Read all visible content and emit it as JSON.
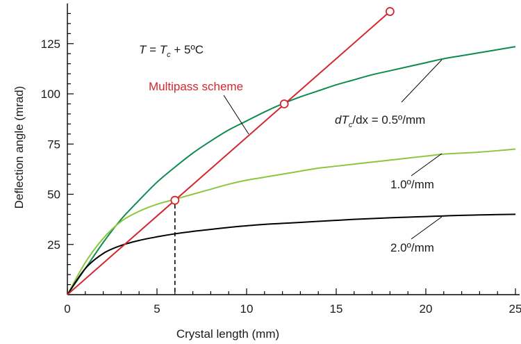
{
  "chart_data": {
    "type": "line",
    "xlabel": "Crystal length (mm)",
    "ylabel": "Deflection angle (mrad)",
    "xlim": [
      0,
      25
    ],
    "ylim": [
      0,
      145
    ],
    "x_ticks": [
      "0",
      "5",
      "10",
      "15",
      "20",
      "25"
    ],
    "y_ticks": [
      "25",
      "50",
      "75",
      "100",
      "125"
    ],
    "x_tick_values": [
      0,
      5,
      10,
      15,
      20,
      25
    ],
    "y_tick_values": [
      25,
      50,
      75,
      100,
      125
    ],
    "grid": false,
    "annotations": {
      "temperature": {
        "T": "T",
        "eq": " = ",
        "Tc": "T",
        "sub": "c",
        "rest": " + 5ºC"
      },
      "multipass": "Multipass scheme",
      "gradient": {
        "d": "dT",
        "sub": "c",
        "rest": "/dx = 0.5º/mm"
      },
      "mid": "1.0º/mm",
      "low": "2.0º/mm"
    },
    "series": [
      {
        "key": "gradient_0_5",
        "color": "#0e8a4e",
        "x": [
          0,
          1,
          2,
          3,
          4,
          5,
          6,
          7,
          8,
          9,
          10,
          11,
          12,
          13,
          14,
          15,
          16,
          17,
          18,
          19,
          20,
          21,
          22,
          23,
          24,
          25
        ],
        "y": [
          0,
          13,
          26,
          37.5,
          47,
          56,
          63.5,
          70.5,
          76.5,
          82,
          86.5,
          91,
          95,
          98.5,
          101.5,
          104.5,
          107,
          109.5,
          111.5,
          113.5,
          115.5,
          117.5,
          119,
          120.5,
          122,
          123.5
        ]
      },
      {
        "key": "gradient_1_0",
        "color": "#8cc63f",
        "x": [
          0,
          1,
          2,
          3,
          4,
          5,
          6,
          7,
          8,
          9,
          10,
          11,
          12,
          13,
          14,
          15,
          16,
          17,
          18,
          19,
          20,
          21,
          22,
          23,
          24,
          25
        ],
        "y": [
          0,
          16,
          28,
          36.5,
          41.5,
          45,
          47.5,
          50,
          52.5,
          55,
          57,
          58.5,
          60,
          61.5,
          63,
          64,
          65,
          66,
          67,
          68,
          69,
          70,
          70.5,
          71,
          71.7,
          72.5
        ]
      },
      {
        "key": "gradient_2_0",
        "color": "#000000",
        "x": [
          0,
          1,
          2,
          3,
          4,
          5,
          6,
          7,
          8,
          9,
          10,
          11,
          12,
          13,
          14,
          15,
          16,
          17,
          18,
          19,
          20,
          21,
          22,
          23,
          24,
          25
        ],
        "y": [
          0,
          13,
          20.5,
          24.5,
          27,
          28.8,
          30.3,
          31.5,
          32.5,
          33.5,
          34.3,
          35,
          35.5,
          36,
          36.5,
          37,
          37.5,
          37.9,
          38.3,
          38.6,
          38.9,
          39.2,
          39.5,
          39.7,
          39.9,
          40
        ]
      },
      {
        "key": "multipass",
        "color": "#d4262c",
        "x": [
          0,
          18
        ],
        "y": [
          0,
          141
        ],
        "markers": [
          {
            "x": 6,
            "y": 47
          },
          {
            "x": 12.1,
            "y": 95
          },
          {
            "x": 18,
            "y": 141
          }
        ]
      }
    ],
    "dashed_guide": {
      "x": 6,
      "y": 47
    }
  }
}
